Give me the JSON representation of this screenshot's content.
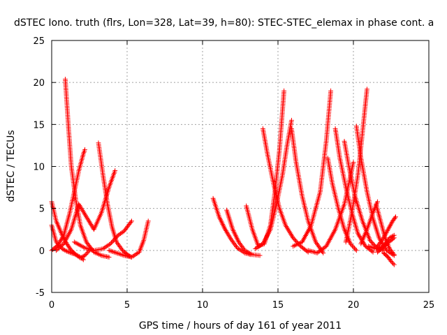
{
  "chart_data": {
    "type": "scatter",
    "title": "dSTEC Iono. truth (flrs, Lon=328, Lat=39, h=80): STEC-STEC_elemax in phase cont. a",
    "xlabel": "GPS time / hours of day 161 of year 2011",
    "ylabel": "dSTEC  / TECUs",
    "xlim": [
      0,
      25
    ],
    "ylim": [
      -5,
      25
    ],
    "xticks": [
      0,
      5,
      10,
      15,
      20,
      25
    ],
    "yticks": [
      -5,
      0,
      5,
      10,
      15,
      20,
      25
    ],
    "grid": true,
    "legend": "none",
    "marker": "+",
    "color": "#ff0000",
    "series": [
      {
        "x": [
          0.9,
          1.1,
          1.3,
          1.6,
          1.9,
          2.3,
          2.8,
          3.3,
          3.8
        ],
        "y": [
          20.4,
          15.0,
          10.0,
          6.0,
          3.0,
          1.0,
          -0.2,
          -0.6,
          -0.8
        ]
      },
      {
        "x": [
          0.0,
          0.3,
          0.7,
          1.0,
          1.3,
          1.6,
          1.9,
          2.2,
          2.6
        ],
        "y": [
          5.8,
          3.5,
          1.8,
          0.8,
          0.0,
          -0.5,
          -0.9,
          -0.6,
          0.2
        ]
      },
      {
        "x": [
          0.0,
          0.3,
          0.7,
          1.0,
          1.3,
          1.6,
          1.9,
          2.1
        ],
        "y": [
          3.0,
          1.0,
          0.2,
          -0.1,
          -0.3,
          -0.5,
          -0.8,
          -1.1
        ]
      },
      {
        "x": [
          0.0,
          0.4,
          0.8,
          1.2,
          1.5,
          1.8,
          2.1,
          2.2
        ],
        "y": [
          0.0,
          0.6,
          1.8,
          4.5,
          7.0,
          9.5,
          11.5,
          12.0
        ]
      },
      {
        "x": [
          0.3,
          0.8,
          1.3,
          1.8,
          2.3,
          2.8,
          3.3,
          3.8,
          4.2
        ],
        "y": [
          0.0,
          0.8,
          2.5,
          5.5,
          4.0,
          2.5,
          4.5,
          7.5,
          9.5
        ]
      },
      {
        "x": [
          3.1,
          3.4,
          3.7,
          4.0,
          4.3,
          4.7,
          5.1,
          5.3
        ],
        "y": [
          12.8,
          9.0,
          5.5,
          2.8,
          1.0,
          0.0,
          -0.6,
          -0.8
        ]
      },
      {
        "x": [
          1.5,
          2.2,
          2.8,
          3.4,
          3.9,
          4.4,
          4.8,
          5.3
        ],
        "y": [
          1.0,
          0.3,
          0.0,
          0.2,
          0.8,
          1.8,
          2.3,
          3.5
        ]
      },
      {
        "x": [
          3.8,
          4.3,
          4.8,
          5.3,
          5.8,
          6.1,
          6.4
        ],
        "y": [
          0.0,
          -0.3,
          -0.6,
          -0.8,
          -0.2,
          1.2,
          3.5
        ]
      },
      {
        "x": [
          10.7,
          11.1,
          11.5,
          11.9,
          12.3,
          12.8,
          13.2
        ],
        "y": [
          6.2,
          4.0,
          2.5,
          1.3,
          0.3,
          -0.3,
          -0.5
        ]
      },
      {
        "x": [
          11.6,
          12.0,
          12.4,
          12.8,
          13.3,
          13.8
        ],
        "y": [
          4.8,
          2.5,
          1.0,
          0.0,
          -0.5,
          -0.6
        ]
      },
      {
        "x": [
          12.9,
          13.3,
          13.7,
          14.1,
          14.5,
          14.8,
          15.1,
          15.4
        ],
        "y": [
          5.3,
          2.5,
          0.5,
          0.8,
          3.0,
          7.0,
          12.0,
          19.0
        ]
      },
      {
        "x": [
          13.5,
          14.0,
          14.5,
          14.9,
          15.3,
          15.6,
          15.9
        ],
        "y": [
          0.2,
          0.8,
          2.5,
          5.5,
          9.0,
          12.5,
          15.5
        ]
      },
      {
        "x": [
          14.0,
          14.3,
          14.7,
          15.1,
          15.5,
          16.0,
          16.5,
          17.0
        ],
        "y": [
          14.5,
          11.5,
          8.0,
          5.0,
          3.0,
          1.5,
          0.5,
          -0.2
        ]
      },
      {
        "x": [
          15.9,
          16.2,
          16.6,
          17.0,
          17.5,
          18.0
        ],
        "y": [
          14.5,
          10.5,
          6.5,
          3.5,
          1.0,
          -0.3
        ]
      },
      {
        "x": [
          16.0,
          16.6,
          17.2,
          17.8,
          18.2,
          18.5
        ],
        "y": [
          0.5,
          1.0,
          3.0,
          7.0,
          13.0,
          19.0
        ]
      },
      {
        "x": [
          17.0,
          17.6,
          18.2,
          18.8,
          19.4,
          20.0
        ],
        "y": [
          0.0,
          -0.3,
          0.5,
          2.5,
          5.5,
          10.5
        ]
      },
      {
        "x": [
          18.3,
          18.6,
          19.0,
          19.4,
          19.8,
          20.2
        ],
        "y": [
          11.0,
          8.0,
          5.0,
          2.5,
          0.8,
          0.0
        ]
      },
      {
        "x": [
          18.8,
          19.1,
          19.5,
          19.9,
          20.3,
          20.8,
          21.3
        ],
        "y": [
          14.5,
          11.0,
          7.5,
          4.5,
          2.0,
          0.5,
          -0.2
        ]
      },
      {
        "x": [
          19.4,
          19.7,
          20.1,
          20.6,
          21.1,
          21.6,
          22.0
        ],
        "y": [
          13.0,
          10.0,
          6.5,
          3.5,
          1.2,
          0.2,
          0.0
        ]
      },
      {
        "x": [
          19.5,
          19.9,
          20.3,
          20.6,
          20.9
        ],
        "y": [
          1.0,
          4.5,
          9.0,
          14.0,
          19.2
        ]
      },
      {
        "x": [
          20.2,
          20.5,
          20.9,
          21.3,
          21.7,
          22.2,
          22.7
        ],
        "y": [
          14.8,
          11.0,
          7.0,
          3.8,
          1.5,
          0.0,
          -0.6
        ]
      },
      {
        "x": [
          20.5,
          20.9,
          21.3,
          21.6
        ],
        "y": [
          0.8,
          2.5,
          4.5,
          5.8
        ]
      },
      {
        "x": [
          21.5,
          21.8,
          22.1,
          22.4,
          22.7
        ],
        "y": [
          5.5,
          3.5,
          1.5,
          0.2,
          -0.5
        ]
      },
      {
        "x": [
          21.0,
          21.5,
          22.0,
          22.4,
          22.7
        ],
        "y": [
          0.5,
          0.2,
          0.5,
          1.5,
          1.8
        ]
      },
      {
        "x": [
          21.6,
          22.0,
          22.3,
          22.6,
          22.8
        ],
        "y": [
          0.5,
          1.5,
          2.5,
          3.5,
          4.0
        ]
      },
      {
        "x": [
          22.0,
          22.3,
          22.5,
          22.7
        ],
        "y": [
          -0.3,
          -0.8,
          -1.3,
          -1.7
        ]
      },
      {
        "x": [
          21.6,
          21.9,
          22.2,
          22.5,
          22.7
        ],
        "y": [
          -0.2,
          0.3,
          0.8,
          1.2,
          1.5
        ]
      }
    ]
  }
}
